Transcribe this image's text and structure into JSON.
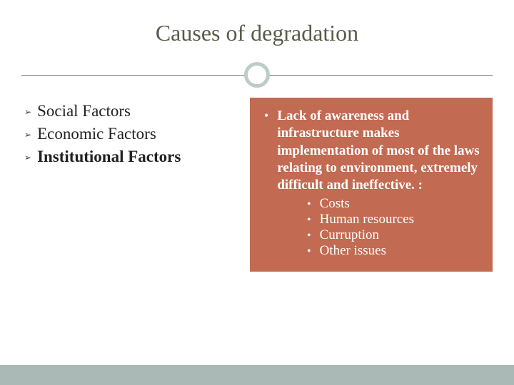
{
  "title": "Causes of degradation",
  "colors": {
    "background": "#ffffff",
    "title_text": "#5a5a4a",
    "divider_line": "#777777",
    "circle_border": "#bcccc9",
    "callout_bg": "#c26a52",
    "callout_text": "#ffffff",
    "footer_bar": "#aab9b6",
    "body_text": "#222222"
  },
  "left": {
    "items": [
      {
        "text": "Social Factors",
        "bold": false
      },
      {
        "text": "Economic Factors",
        "bold": false
      },
      {
        "text": "Institutional Factors",
        "bold": true
      }
    ]
  },
  "right": {
    "main": "Lack of awareness and infrastructure makes implementation of most of the laws relating to environment, extremely difficult and ineffective. :",
    "sub": [
      "Costs",
      "Human resources",
      "Curruption",
      "Other issues"
    ]
  },
  "typography": {
    "title_fontsize": 32,
    "left_fontsize": 23,
    "right_fontsize": 19
  }
}
